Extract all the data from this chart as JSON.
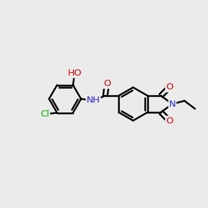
{
  "background_color": "#ebebeb",
  "bond_color": "#000000",
  "bond_width": 1.8,
  "figsize": [
    3.0,
    3.0
  ],
  "dpi": 100,
  "atom_colors": {
    "N": "#2222cc",
    "O": "#cc0000",
    "Cl": "#00aa00"
  },
  "font_size": 9.5
}
